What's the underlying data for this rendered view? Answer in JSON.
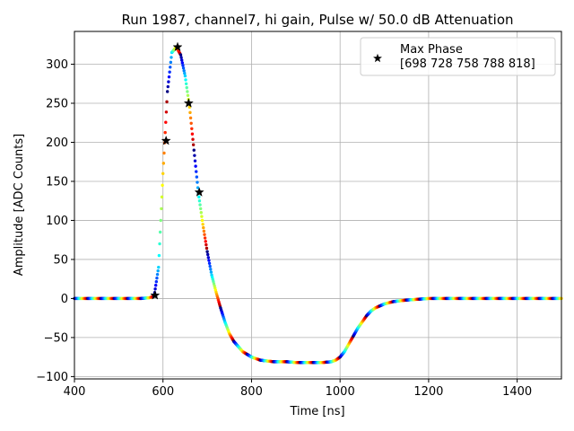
{
  "chart_data": {
    "type": "scatter",
    "title": "Run 1987, channel7, hi gain, Pulse w/ 50.0 dB Attenuation",
    "xlabel": "Time [ns]",
    "ylabel": "Amplitude [ADC Counts]",
    "xlim": [
      400,
      1500
    ],
    "ylim": [
      -103,
      342
    ],
    "x_ticks": [
      400,
      600,
      800,
      1000,
      1200,
      1400
    ],
    "y_ticks": [
      -100,
      -50,
      0,
      50,
      100,
      150,
      200,
      250,
      300
    ],
    "grid": true,
    "legend_position": "top-right",
    "colormap": "jet",
    "series": [
      {
        "name": "Max Phase\n [698 728 758 788 818]",
        "marker": "star",
        "color": "#000000",
        "x": [
          582,
          607,
          633,
          658,
          682
        ],
        "y": [
          4,
          202,
          322,
          250,
          136
        ]
      }
    ],
    "waveform": {
      "x": [
        400,
        450,
        500,
        550,
        570,
        580,
        590,
        600,
        610,
        620,
        630,
        640,
        650,
        660,
        670,
        680,
        690,
        700,
        710,
        720,
        730,
        740,
        750,
        760,
        780,
        800,
        820,
        850,
        880,
        900,
        930,
        960,
        980,
        990,
        1000,
        1010,
        1020,
        1030,
        1040,
        1050,
        1060,
        1070,
        1080,
        1100,
        1120,
        1150,
        1200,
        1250,
        1300,
        1400,
        1500
      ],
      "y": [
        0,
        0,
        0,
        0,
        1,
        3,
        40,
        160,
        265,
        315,
        322,
        312,
        285,
        245,
        190,
        135,
        95,
        60,
        30,
        8,
        -12,
        -30,
        -45,
        -55,
        -68,
        -75,
        -79,
        -81,
        -81,
        -82,
        -82,
        -82,
        -81,
        -79,
        -75,
        -68,
        -58,
        -48,
        -38,
        -30,
        -22,
        -16,
        -12,
        -7,
        -4,
        -2,
        0,
        0,
        0,
        0,
        0
      ]
    }
  }
}
